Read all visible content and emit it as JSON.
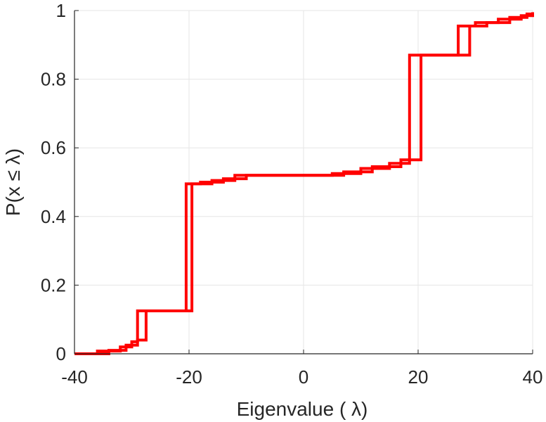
{
  "chart_data": {
    "type": "line",
    "title": "",
    "xlabel": "Eigenvalue (   λ)",
    "ylabel": "P(x ≤  λ)",
    "xlim": [
      -40,
      40
    ],
    "ylim": [
      0,
      1
    ],
    "xticks": [
      "-40",
      "-20",
      "0",
      "20",
      "40"
    ],
    "yticks": [
      "0",
      "0.2",
      "0.4",
      "0.6",
      "0.8",
      "1"
    ],
    "grid": true,
    "legend": "none",
    "series": [
      {
        "step": true,
        "color": "#ff0000",
        "x": [
          -40,
          -36,
          -32,
          -30,
          -29,
          -20.5,
          -18,
          -14,
          -12,
          5,
          10,
          15,
          18.5,
          27,
          30,
          34,
          38,
          40
        ],
        "y": [
          0,
          0.008,
          0.02,
          0.035,
          0.125,
          0.495,
          0.5,
          0.51,
          0.52,
          0.525,
          0.54,
          0.555,
          0.87,
          0.955,
          0.965,
          0.975,
          0.985,
          0.99
        ]
      },
      {
        "step": true,
        "color": "#ff0000",
        "x": [
          -40,
          -34,
          -31,
          -29,
          -27.5,
          -19.5,
          -16,
          -12,
          -10,
          7,
          12,
          17,
          20.5,
          29,
          32,
          36,
          39,
          40
        ],
        "y": [
          0,
          0.01,
          0.025,
          0.04,
          0.125,
          0.495,
          0.505,
          0.51,
          0.52,
          0.53,
          0.545,
          0.565,
          0.87,
          0.955,
          0.965,
          0.98,
          0.99,
          0.995
        ]
      }
    ]
  }
}
